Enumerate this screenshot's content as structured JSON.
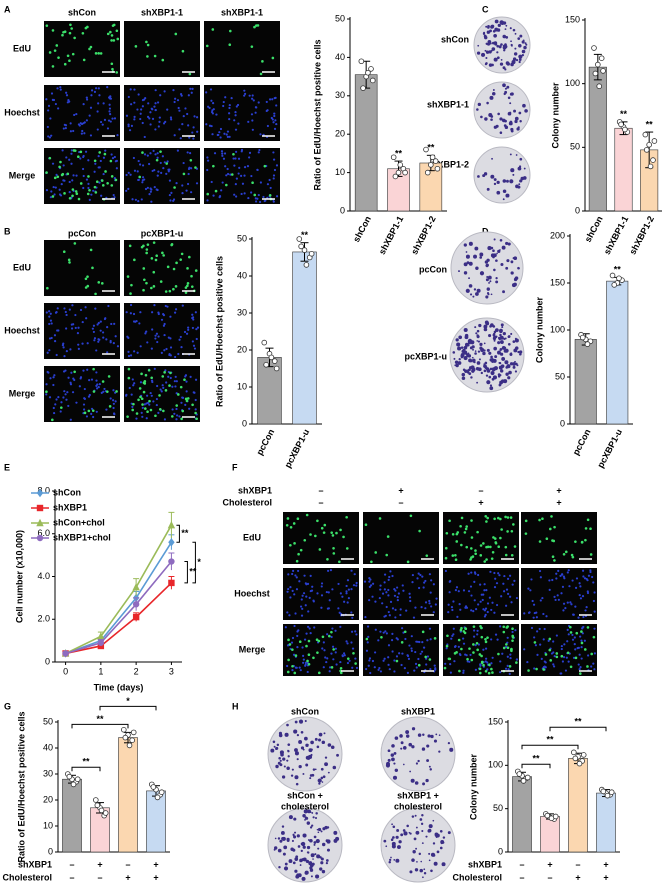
{
  "panels": {
    "A": {
      "letter": "A",
      "columns": [
        "shCon",
        "shXBP1-1",
        "shXBP1-1"
      ],
      "rows": [
        "EdU",
        "Hoechst",
        "Merge"
      ]
    },
    "B": {
      "letter": "B",
      "columns": [
        "pcCon",
        "pcXBP1-u"
      ],
      "rows": [
        "EdU",
        "Hoechst",
        "Merge"
      ]
    },
    "C": {
      "letter": "C",
      "plates": [
        [
          "shCon"
        ],
        [
          "shXBP1-1"
        ],
        [
          "shXBP1-2"
        ]
      ]
    },
    "D": {
      "letter": "D",
      "plates": [
        [
          "pcCon"
        ],
        [
          "pcXBP1-u"
        ]
      ]
    },
    "E": {
      "letter": "E"
    },
    "F": {
      "letter": "F",
      "factors": [
        {
          "name": "shXBP1",
          "levels": [
            "–",
            "+",
            "–",
            "+"
          ]
        },
        {
          "name": "Cholesterol",
          "levels": [
            "–",
            "–",
            "+",
            "+"
          ]
        }
      ],
      "rows": [
        "EdU",
        "Hoechst",
        "Merge"
      ]
    },
    "G": {
      "letter": "G"
    },
    "H": {
      "letter": "H",
      "plates": [
        [
          "shCon"
        ],
        [
          "shXBP1"
        ],
        [
          "shCon +",
          "cholesterol"
        ],
        [
          "shXBP1 +",
          "cholesterol"
        ]
      ]
    }
  },
  "chart_data": [
    {
      "type": "bar",
      "ylabel": "Ratio of EdU/Hoechst positive cells",
      "categories": [
        "shCon",
        "shXBP1-1",
        "shXBP1-2"
      ],
      "values": [
        35.5,
        11,
        12.5
      ],
      "errors": [
        3.5,
        2,
        2
      ],
      "points": [
        [
          39,
          35,
          37,
          32,
          36,
          34
        ],
        [
          14,
          10,
          11,
          9,
          12,
          10
        ],
        [
          16,
          12,
          13,
          10,
          14,
          11
        ]
      ],
      "colors": [
        "#a3a3a3",
        "#fad4d6",
        "#fbd7b0"
      ],
      "significance": [
        null,
        "**",
        "**"
      ],
      "ylim": [
        0,
        50
      ],
      "yticks": [
        0,
        10,
        20,
        30,
        40,
        50
      ]
    },
    {
      "type": "bar",
      "ylabel": "Colony number",
      "categories": [
        "shCon",
        "shXBP1-1",
        "shXBP1-2"
      ],
      "values": [
        113,
        65,
        48
      ],
      "errors": [
        10,
        5,
        14
      ],
      "points": [
        [
          128,
          115,
          120,
          108,
          98,
          110
        ],
        [
          70,
          66,
          62,
          68,
          64
        ],
        [
          60,
          52,
          40,
          48,
          35,
          55
        ]
      ],
      "colors": [
        "#a3a3a3",
        "#fad4d6",
        "#fbd7b0"
      ],
      "significance": [
        null,
        "**",
        "**"
      ],
      "ylim": [
        0,
        150
      ],
      "yticks": [
        0,
        50,
        100,
        150
      ]
    },
    {
      "type": "bar",
      "ylabel": "Ratio of EdU/Hoechst positive cells",
      "categories": [
        "pcCon",
        "pcXBP1-u"
      ],
      "values": [
        18,
        46.5
      ],
      "errors": [
        2.5,
        2.5
      ],
      "points": [
        [
          22,
          19,
          17,
          16,
          18,
          15
        ],
        [
          50,
          47,
          45,
          48,
          43,
          46
        ]
      ],
      "colors": [
        "#a3a3a3",
        "#c6daf2"
      ],
      "significance": [
        null,
        "**"
      ],
      "ylim": [
        0,
        50
      ],
      "yticks": [
        0,
        10,
        20,
        30,
        40,
        50
      ]
    },
    {
      "type": "bar",
      "ylabel": "Colony number",
      "categories": [
        "pcCon",
        "pcXBP1-u"
      ],
      "values": [
        90,
        152
      ],
      "errors": [
        6,
        4
      ],
      "points": [
        [
          95,
          90,
          88,
          92,
          85
        ],
        [
          158,
          150,
          153,
          148,
          155
        ]
      ],
      "colors": [
        "#a3a3a3",
        "#c6daf2"
      ],
      "significance": [
        null,
        "**"
      ],
      "ylim": [
        0,
        200
      ],
      "yticks": [
        0,
        50,
        100,
        150,
        200
      ]
    },
    {
      "type": "line",
      "xlabel": "Time (days)",
      "ylabel": "Cell number (x10,000)",
      "x": [
        0,
        1,
        2,
        3
      ],
      "xticks": [
        0,
        1,
        2,
        3
      ],
      "xlim": [
        -0.3,
        3.3
      ],
      "ylim": [
        0,
        8
      ],
      "yticks": [
        0,
        {
          "value": 2,
          "label": "2.0"
        },
        {
          "value": 4,
          "label": "4.0"
        },
        {
          "value": 6,
          "label": "6.0"
        },
        {
          "value": 8,
          "label": "8.0"
        }
      ],
      "series": [
        {
          "name": "shCon",
          "color": "#5b9bd5",
          "marker": "diamond",
          "values": [
            0.4,
            1.0,
            3.0,
            5.6
          ],
          "errors": [
            0.05,
            0.15,
            0.3,
            0.35
          ]
        },
        {
          "name": "shXBP1",
          "color": "#e8262a",
          "marker": "square",
          "values": [
            0.4,
            0.75,
            2.1,
            3.7
          ],
          "errors": [
            0.05,
            0.1,
            0.2,
            0.3
          ]
        },
        {
          "name": "shCon+chol",
          "color": "#9bbb59",
          "marker": "triangle",
          "values": [
            0.4,
            1.2,
            3.5,
            6.4
          ],
          "errors": [
            0.05,
            0.2,
            0.4,
            0.6
          ]
        },
        {
          "name": "shXBP1+chol",
          "color": "#8e6bbf",
          "marker": "circle",
          "values": [
            0.4,
            0.9,
            2.7,
            4.7
          ],
          "errors": [
            0.05,
            0.15,
            0.3,
            0.4
          ]
        }
      ],
      "comparisons": [
        {
          "from": 2,
          "to": 0,
          "label": "**"
        },
        {
          "from": 3,
          "to": 1,
          "label": "**"
        },
        {
          "from": 0,
          "to": 1,
          "label": "*"
        }
      ]
    },
    {
      "type": "bar",
      "ylabel": "Ratio of EdU/Hoechst positive cells",
      "factors": [
        {
          "name": "shXBP1",
          "levels": [
            "–",
            "+",
            "–",
            "+"
          ]
        },
        {
          "name": "Cholesterol",
          "levels": [
            "–",
            "–",
            "+",
            "+"
          ]
        }
      ],
      "values": [
        28,
        17,
        44,
        23.5
      ],
      "errors": [
        1.5,
        2,
        2,
        2
      ],
      "points": [
        [
          30,
          28,
          27,
          29,
          26,
          28
        ],
        [
          20,
          17,
          14,
          18,
          16,
          15
        ],
        [
          47,
          45,
          43,
          44,
          41,
          46
        ],
        [
          26,
          24,
          22,
          25,
          21,
          23
        ]
      ],
      "colors": [
        "#a3a3a3",
        "#fad4d6",
        "#fbd7b0",
        "#c6daf2"
      ],
      "comparisons": [
        {
          "from": 0,
          "to": 1,
          "label": "**"
        },
        {
          "from": 0,
          "to": 2,
          "label": "**"
        },
        {
          "from": 1,
          "to": 3,
          "label": "*"
        }
      ],
      "ylim": [
        0,
        50
      ],
      "yticks": [
        0,
        10,
        20,
        30,
        40,
        50
      ]
    },
    {
      "type": "bar",
      "ylabel": "Colony number",
      "factors": [
        {
          "name": "shXBP1",
          "levels": [
            "–",
            "+",
            "–",
            "+"
          ]
        },
        {
          "name": "Cholesterol",
          "levels": [
            "–",
            "–",
            "+",
            "+"
          ]
        }
      ],
      "values": [
        87,
        41,
        108,
        68
      ],
      "errors": [
        5,
        3,
        6,
        4
      ],
      "points": [
        [
          93,
          88,
          85,
          90,
          82,
          86
        ],
        [
          44,
          40,
          38,
          42,
          39,
          41
        ],
        [
          115,
          110,
          105,
          108,
          102,
          112
        ],
        [
          72,
          68,
          66,
          70,
          65,
          69
        ]
      ],
      "colors": [
        "#a3a3a3",
        "#fad4d6",
        "#fbd7b0",
        "#c6daf2"
      ],
      "comparisons": [
        {
          "from": 0,
          "to": 1,
          "label": "**"
        },
        {
          "from": 0,
          "to": 2,
          "label": "**"
        },
        {
          "from": 1,
          "to": 3,
          "label": "**"
        }
      ],
      "ylim": [
        0,
        150
      ],
      "yticks": [
        0,
        50,
        100,
        150
      ]
    }
  ]
}
